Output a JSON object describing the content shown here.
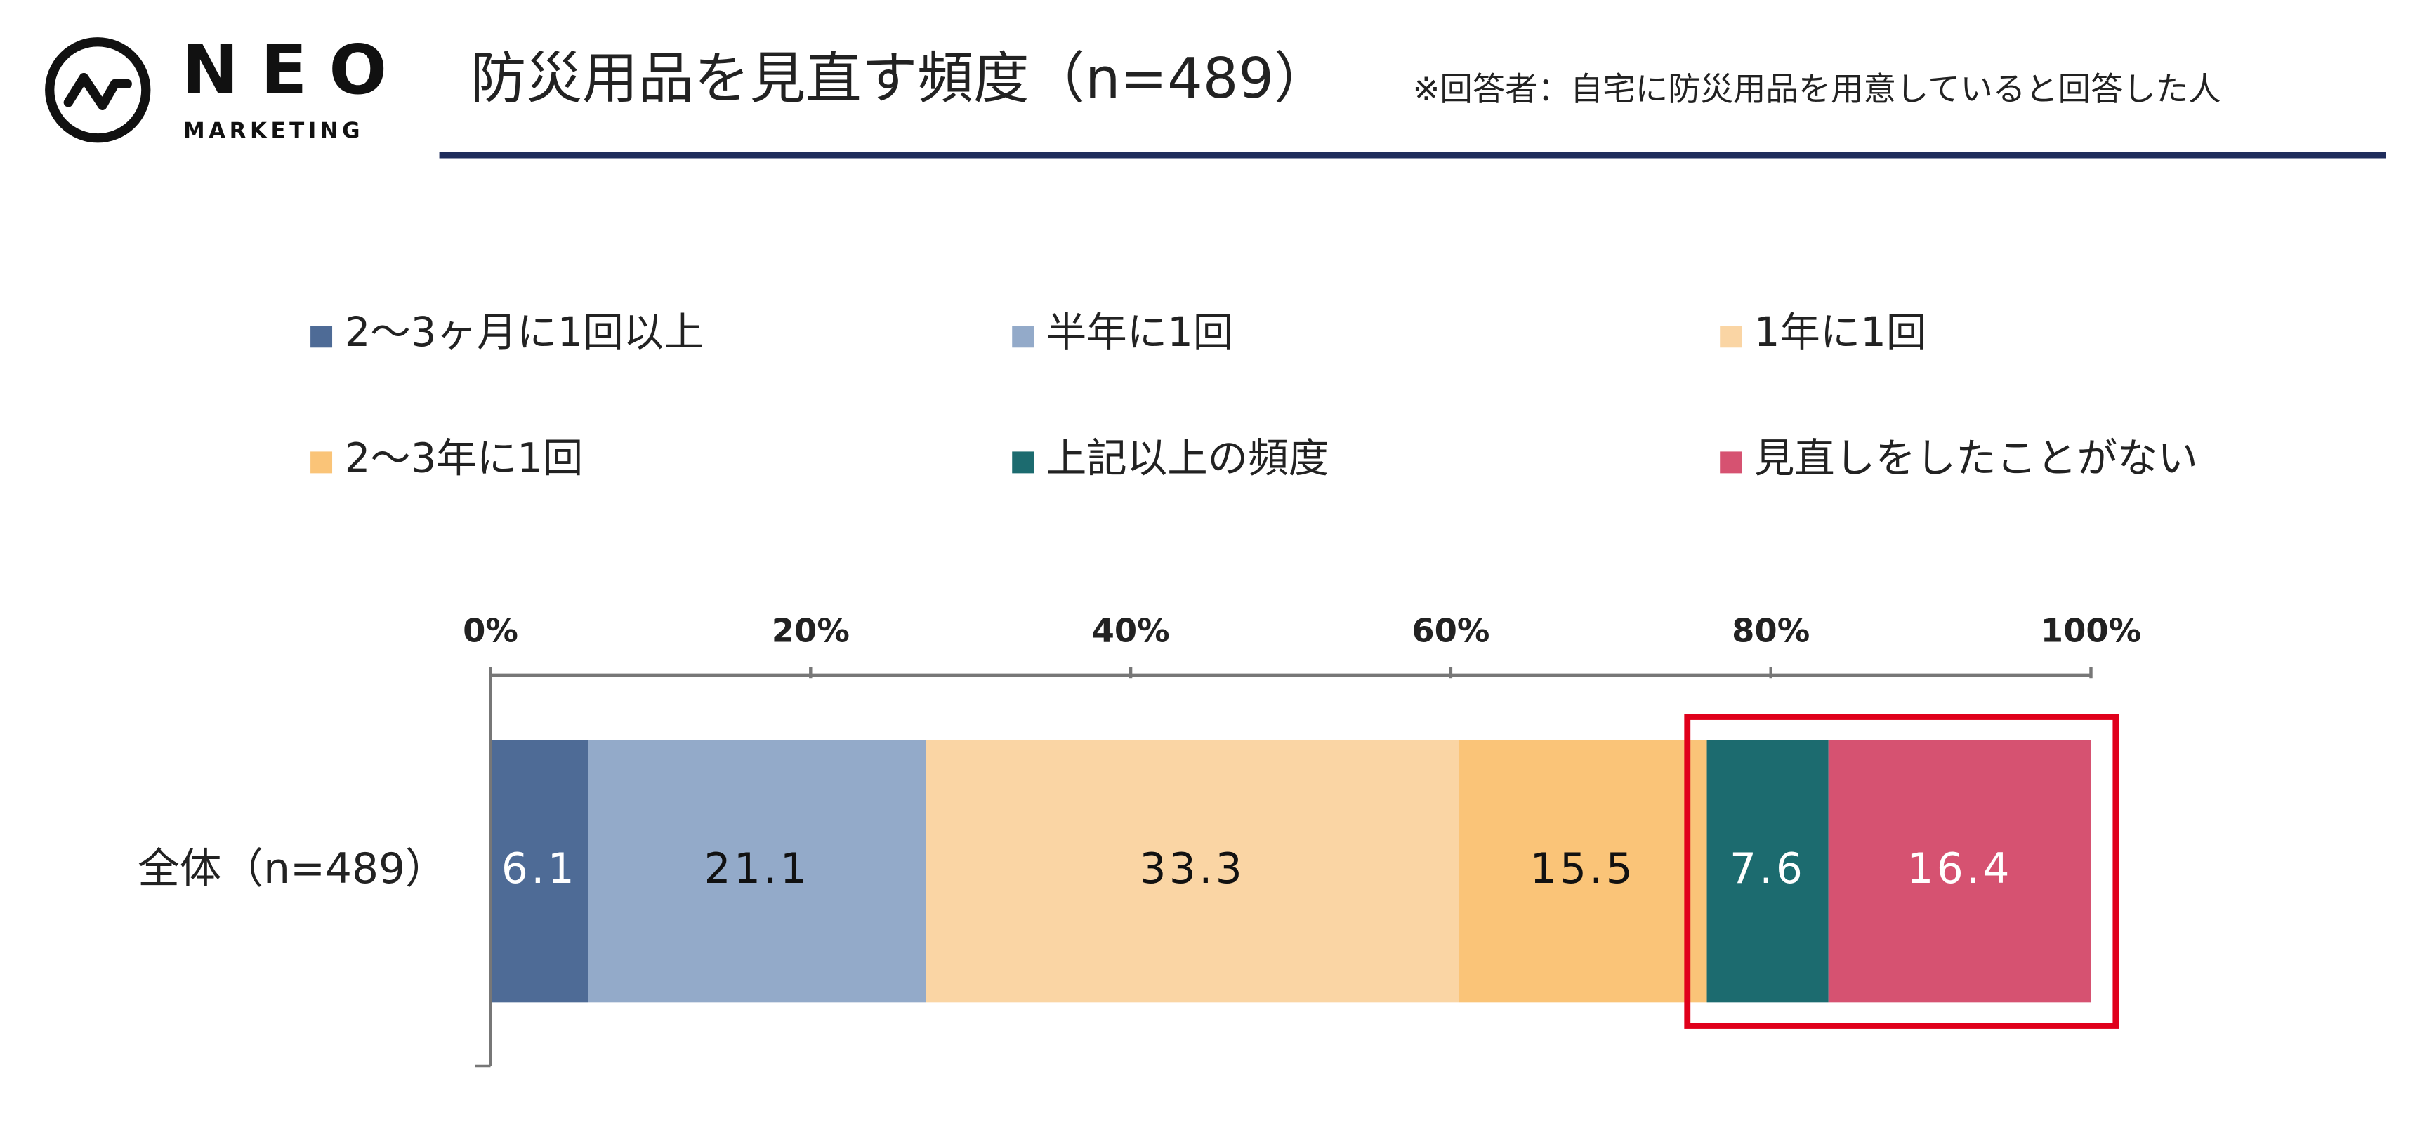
{
  "logo": {
    "name": "NEO",
    "tagline": "MARKETING"
  },
  "chart_data": {
    "type": "stacked_bar_horizontal",
    "title": "防災用品を見直す頻度（n=489）",
    "subtitle": "※回答者：自宅に防災用品を用意していると回答した人",
    "categories": [
      "全体（n=489）"
    ],
    "series": [
      {
        "name": "2～3ヶ月に1回以上",
        "color": "#4e6b96",
        "values": [
          6.1
        ]
      },
      {
        "name": "半年に1回",
        "color": "#93aac9",
        "values": [
          21.1
        ]
      },
      {
        "name": "1年に1回",
        "color": "#fad5a4",
        "values": [
          33.3
        ]
      },
      {
        "name": "2～3年に1回",
        "color": "#fac478",
        "values": [
          15.5
        ]
      },
      {
        "name": "上記以上の頻度",
        "color": "#1c6b6f",
        "values": [
          7.6
        ]
      },
      {
        "name": "見直しをしたことがない",
        "color": "#d65271",
        "values": [
          16.4
        ]
      }
    ],
    "xlim": [
      0,
      100
    ],
    "xticks": [
      {
        "value": 0,
        "label": "0%"
      },
      {
        "value": 20,
        "label": "20%"
      },
      {
        "value": 40,
        "label": "40%"
      },
      {
        "value": 60,
        "label": "60%"
      },
      {
        "value": 80,
        "label": "80%"
      },
      {
        "value": 100,
        "label": "100%"
      }
    ]
  }
}
